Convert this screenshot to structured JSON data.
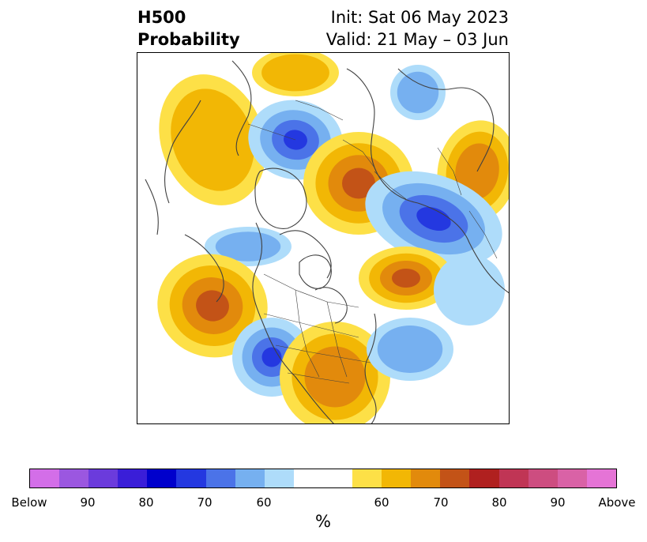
{
  "header": {
    "title_line1": "H500",
    "title_line2": "Probability",
    "init_text": "Init: Sat 06 May 2023",
    "valid_text": "Valid: 21 May – 03 Jun"
  },
  "colorbar": {
    "unit": "%",
    "colors": [
      "#d36ee8",
      "#9b57e0",
      "#6b3bdc",
      "#3a1ed8",
      "#0000cc",
      "#2438e0",
      "#4b73e8",
      "#76b0f0",
      "#aedcfa",
      "#ffffff",
      "#ffffff",
      "#fde047",
      "#f2b705",
      "#e28a0c",
      "#c35317",
      "#b0201f",
      "#c03555",
      "#cd4d80",
      "#d962a6",
      "#e574d6"
    ],
    "ticks": [
      {
        "label": "Below"
      },
      {
        "label": "90"
      },
      {
        "label": "80"
      },
      {
        "label": "70"
      },
      {
        "label": "60"
      },
      {
        "label": "60"
      },
      {
        "label": "70"
      },
      {
        "label": "80"
      },
      {
        "label": "90"
      },
      {
        "label": "Above"
      }
    ]
  },
  "map": {
    "colors": {
      "blue_light": "#aedcfa",
      "blue_mid": "#76b0f0",
      "blue_strong": "#4b73e8",
      "blue_deep": "#2438e0",
      "yellow": "#fde047",
      "gold": "#f2b705",
      "orange": "#e28a0c",
      "rust": "#c35317",
      "coast": "#404040"
    }
  }
}
